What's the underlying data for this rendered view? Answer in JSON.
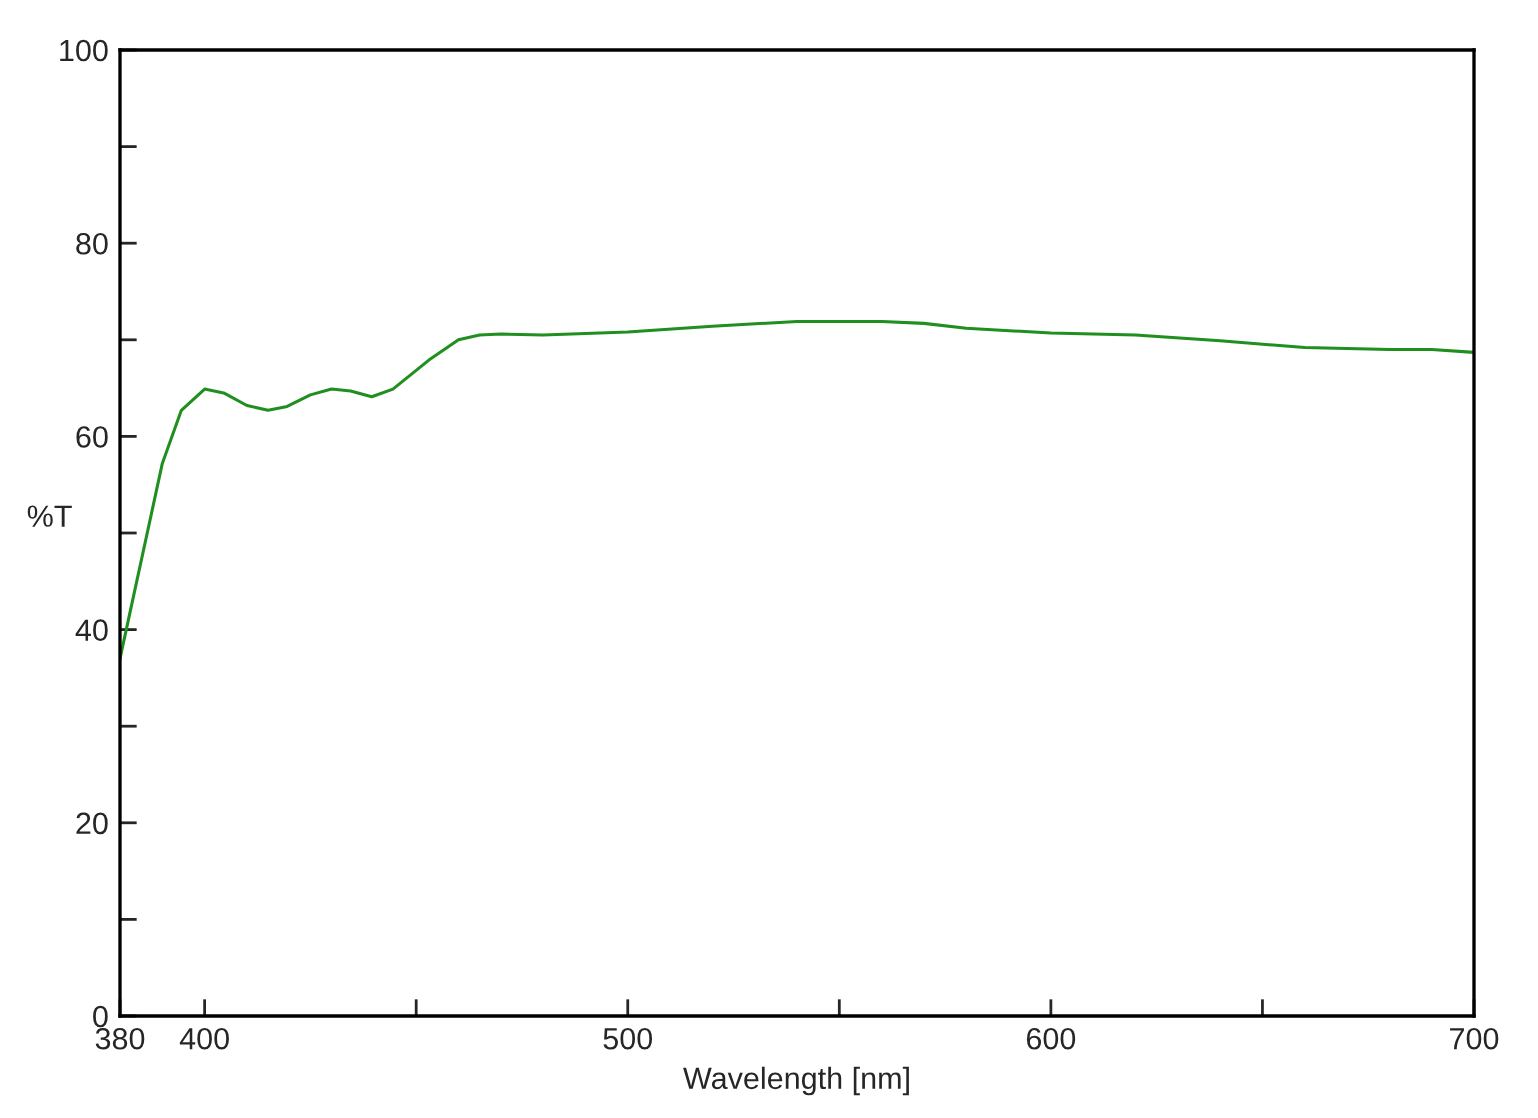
{
  "chart_data": {
    "type": "line",
    "xlabel": "Wavelength [nm]",
    "ylabel": "%T",
    "x": [
      380,
      390,
      394.5,
      400,
      404.5,
      410,
      415,
      419.5,
      425,
      430,
      434.5,
      439.5,
      444.5,
      453,
      460,
      465,
      470,
      480,
      500,
      520,
      540,
      560,
      570,
      580,
      600,
      620,
      640,
      660,
      680,
      690,
      700
    ],
    "series": [
      {
        "color": "#1f8f1f",
        "values": [
          37,
          57.2,
          62.7,
          64.9,
          64.5,
          63.2,
          62.7,
          63.1,
          64.3,
          64.9,
          64.7,
          64.1,
          64.9,
          67.9,
          70,
          70.5,
          70.6,
          70.5,
          70.8,
          71.4,
          71.9,
          71.9,
          71.7,
          71.2,
          70.7,
          70.5,
          69.9,
          69.2,
          69,
          69,
          68.7
        ]
      }
    ],
    "xlim": [
      380,
      700
    ],
    "xticks": [
      380,
      400,
      {
        "value": 450,
        "label": null
      },
      500,
      {
        "value": 550,
        "label": null
      },
      600,
      {
        "value": 650,
        "label": null
      },
      700
    ],
    "ylim": [
      0,
      100
    ],
    "yticks": [
      0,
      {
        "value": 10,
        "label": null
      },
      20,
      {
        "value": 30,
        "label": null
      },
      40,
      {
        "value": 50,
        "label": null
      },
      60,
      {
        "value": 70,
        "label": null
      },
      80,
      {
        "value": 90,
        "label": null
      },
      100
    ],
    "grid": false,
    "marker": "none",
    "line_style": "solid"
  }
}
